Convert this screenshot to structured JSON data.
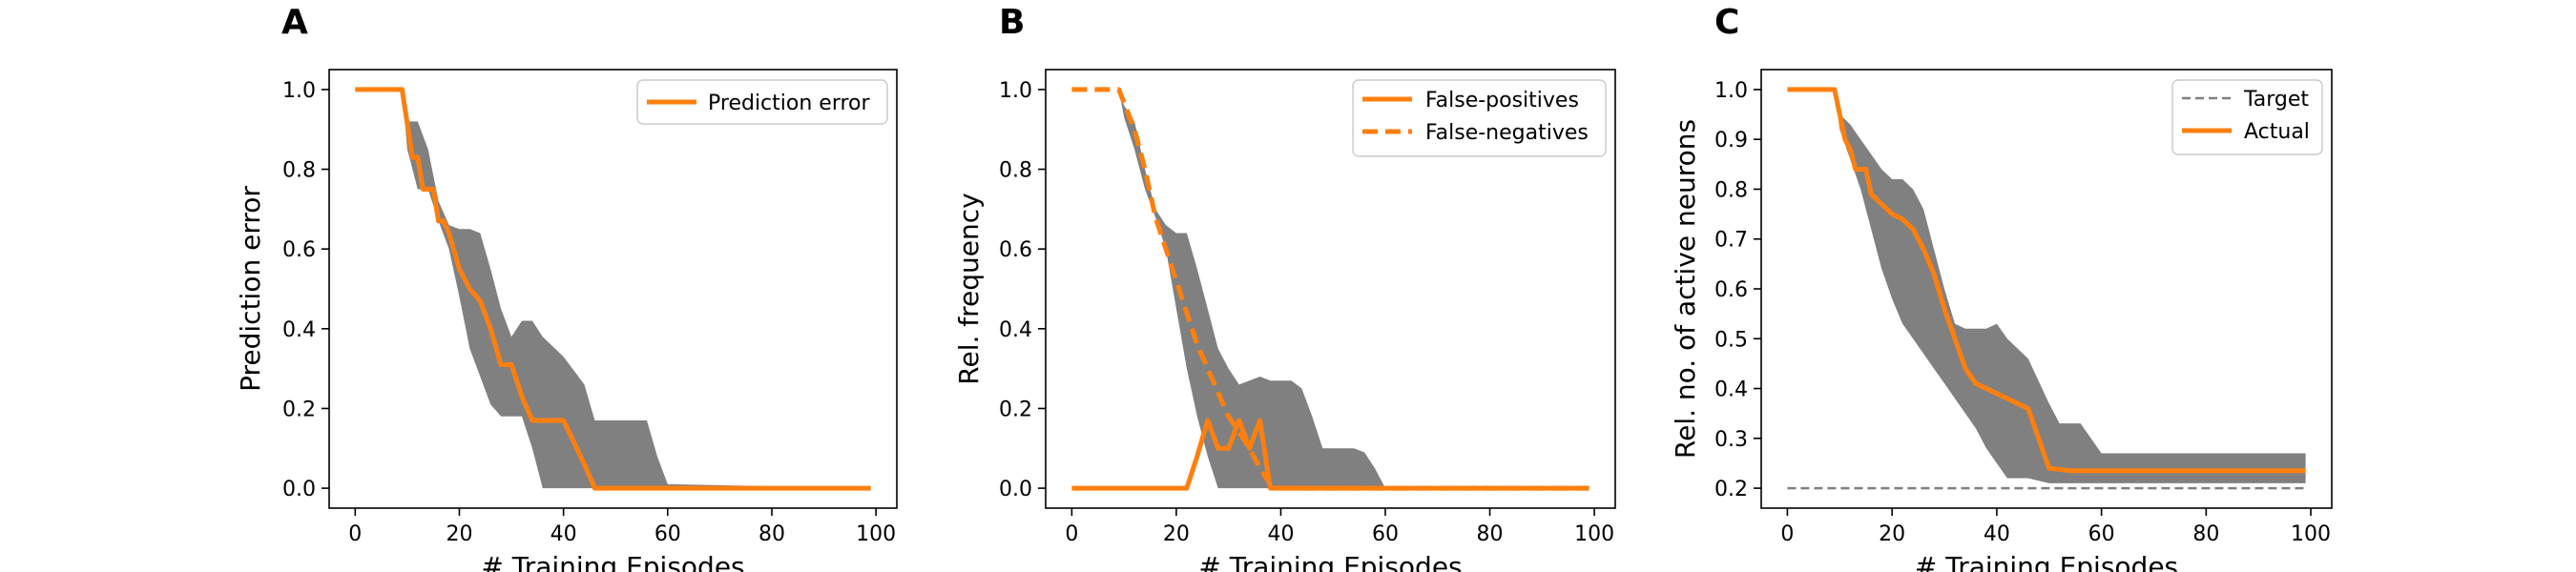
{
  "figure": {
    "panels": [
      {
        "letter": "A"
      },
      {
        "letter": "B"
      },
      {
        "letter": "C"
      }
    ]
  },
  "colors": {
    "accent": "#ff7f0e",
    "band": "#808080",
    "target": "#808080",
    "axes": "#000000"
  },
  "chart_data": [
    {
      "type": "line",
      "panel": "A",
      "xlabel": "# Training Episodes",
      "ylabel": "Prediction error",
      "xlim": [
        -5,
        104
      ],
      "ylim": [
        -0.05,
        1.05
      ],
      "xticks": [
        0,
        20,
        40,
        60,
        80,
        100
      ],
      "yticks": [
        0.0,
        0.2,
        0.4,
        0.6,
        0.8,
        1.0
      ],
      "ytick_labels": [
        "0.0",
        "0.2",
        "0.4",
        "0.6",
        "0.8",
        "1.0"
      ],
      "legend_position": "top-right",
      "band": {
        "upper": [
          [
            0,
            1.0
          ],
          [
            9,
            1.0
          ],
          [
            10,
            0.92
          ],
          [
            12,
            0.92
          ],
          [
            14,
            0.85
          ],
          [
            16,
            0.72
          ],
          [
            18,
            0.66
          ],
          [
            20,
            0.65
          ],
          [
            22,
            0.65
          ],
          [
            24,
            0.64
          ],
          [
            26,
            0.55
          ],
          [
            28,
            0.45
          ],
          [
            30,
            0.38
          ],
          [
            32,
            0.42
          ],
          [
            34,
            0.42
          ],
          [
            36,
            0.38
          ],
          [
            40,
            0.33
          ],
          [
            44,
            0.26
          ],
          [
            46,
            0.17
          ],
          [
            52,
            0.17
          ],
          [
            56,
            0.17
          ],
          [
            58,
            0.08
          ],
          [
            60,
            0.01
          ],
          [
            99,
            0.0
          ]
        ],
        "lower": [
          [
            0,
            1.0
          ],
          [
            9,
            1.0
          ],
          [
            10,
            0.85
          ],
          [
            12,
            0.75
          ],
          [
            14,
            0.75
          ],
          [
            16,
            0.67
          ],
          [
            18,
            0.6
          ],
          [
            20,
            0.48
          ],
          [
            22,
            0.35
          ],
          [
            24,
            0.28
          ],
          [
            26,
            0.21
          ],
          [
            28,
            0.18
          ],
          [
            30,
            0.18
          ],
          [
            32,
            0.18
          ],
          [
            34,
            0.1
          ],
          [
            36,
            0.0
          ],
          [
            99,
            0.0
          ]
        ]
      },
      "series": [
        {
          "name": "Prediction error",
          "style": "solid",
          "color": "#ff7f0e",
          "points": [
            [
              0,
              1.0
            ],
            [
              9,
              1.0
            ],
            [
              11,
              0.83
            ],
            [
              12,
              0.83
            ],
            [
              13,
              0.75
            ],
            [
              15,
              0.75
            ],
            [
              16,
              0.67
            ],
            [
              17,
              0.67
            ],
            [
              18,
              0.64
            ],
            [
              20,
              0.55
            ],
            [
              22,
              0.5
            ],
            [
              24,
              0.47
            ],
            [
              26,
              0.4
            ],
            [
              28,
              0.31
            ],
            [
              30,
              0.31
            ],
            [
              32,
              0.23
            ],
            [
              34,
              0.17
            ],
            [
              40,
              0.17
            ],
            [
              44,
              0.06
            ],
            [
              46,
              0.0
            ],
            [
              99,
              0.0
            ]
          ]
        }
      ]
    },
    {
      "type": "line",
      "panel": "B",
      "xlabel": "# Training Episodes",
      "ylabel": "Rel. frequency",
      "xlim": [
        -5,
        104
      ],
      "ylim": [
        -0.05,
        1.05
      ],
      "xticks": [
        0,
        20,
        40,
        60,
        80,
        100
      ],
      "yticks": [
        0.0,
        0.2,
        0.4,
        0.6,
        0.8,
        1.0
      ],
      "ytick_labels": [
        "0.0",
        "0.2",
        "0.4",
        "0.6",
        "0.8",
        "1.0"
      ],
      "legend_position": "top-right",
      "band": {
        "upper": [
          [
            0,
            1.0
          ],
          [
            9,
            1.0
          ],
          [
            10,
            0.96
          ],
          [
            12,
            0.92
          ],
          [
            14,
            0.8
          ],
          [
            16,
            0.7
          ],
          [
            18,
            0.66
          ],
          [
            20,
            0.64
          ],
          [
            22,
            0.64
          ],
          [
            24,
            0.55
          ],
          [
            26,
            0.45
          ],
          [
            28,
            0.35
          ],
          [
            30,
            0.3
          ],
          [
            32,
            0.26
          ],
          [
            34,
            0.27
          ],
          [
            36,
            0.28
          ],
          [
            38,
            0.27
          ],
          [
            40,
            0.27
          ],
          [
            42,
            0.27
          ],
          [
            44,
            0.25
          ],
          [
            46,
            0.18
          ],
          [
            48,
            0.1
          ],
          [
            54,
            0.1
          ],
          [
            56,
            0.09
          ],
          [
            58,
            0.05
          ],
          [
            60,
            0.0
          ],
          [
            99,
            0.0
          ]
        ],
        "lower": [
          [
            0,
            1.0
          ],
          [
            9,
            1.0
          ],
          [
            10,
            0.93
          ],
          [
            12,
            0.85
          ],
          [
            14,
            0.75
          ],
          [
            16,
            0.68
          ],
          [
            18,
            0.6
          ],
          [
            20,
            0.45
          ],
          [
            22,
            0.3
          ],
          [
            24,
            0.18
          ],
          [
            26,
            0.08
          ],
          [
            28,
            0.0
          ],
          [
            99,
            0.0
          ]
        ]
      },
      "series": [
        {
          "name": "False-positives",
          "style": "solid",
          "color": "#ff7f0e",
          "points": [
            [
              0,
              0.0
            ],
            [
              22,
              0.0
            ],
            [
              24,
              0.08
            ],
            [
              26,
              0.17
            ],
            [
              28,
              0.1
            ],
            [
              30,
              0.1
            ],
            [
              32,
              0.17
            ],
            [
              34,
              0.1
            ],
            [
              36,
              0.17
            ],
            [
              38,
              0.0
            ],
            [
              99,
              0.0
            ]
          ]
        },
        {
          "name": "False-negatives",
          "style": "dashed",
          "color": "#ff7f0e",
          "points": [
            [
              0,
              1.0
            ],
            [
              9,
              1.0
            ],
            [
              12,
              0.9
            ],
            [
              14,
              0.8
            ],
            [
              16,
              0.68
            ],
            [
              18,
              0.6
            ],
            [
              20,
              0.52
            ],
            [
              22,
              0.44
            ],
            [
              24,
              0.36
            ],
            [
              26,
              0.3
            ],
            [
              28,
              0.24
            ],
            [
              30,
              0.18
            ],
            [
              32,
              0.14
            ],
            [
              34,
              0.1
            ],
            [
              36,
              0.05
            ],
            [
              38,
              0.01
            ],
            [
              40,
              0.0
            ],
            [
              99,
              0.0
            ]
          ]
        }
      ]
    },
    {
      "type": "line",
      "panel": "C",
      "xlabel": "# Training Episodes",
      "ylabel": "Rel. no. of active neurons",
      "xlim": [
        -5,
        104
      ],
      "ylim": [
        0.16,
        1.04
      ],
      "xticks": [
        0,
        20,
        40,
        60,
        80,
        100
      ],
      "yticks": [
        0.2,
        0.3,
        0.4,
        0.5,
        0.6,
        0.7,
        0.8,
        0.9,
        1.0
      ],
      "ytick_labels": [
        "0.2",
        "0.3",
        "0.4",
        "0.5",
        "0.6",
        "0.7",
        "0.8",
        "0.9",
        "1.0"
      ],
      "legend_position": "top-right",
      "band": {
        "upper": [
          [
            0,
            1.0
          ],
          [
            9,
            1.0
          ],
          [
            10,
            0.95
          ],
          [
            12,
            0.93
          ],
          [
            14,
            0.9
          ],
          [
            16,
            0.87
          ],
          [
            18,
            0.84
          ],
          [
            20,
            0.82
          ],
          [
            22,
            0.82
          ],
          [
            24,
            0.8
          ],
          [
            26,
            0.76
          ],
          [
            28,
            0.68
          ],
          [
            30,
            0.6
          ],
          [
            32,
            0.53
          ],
          [
            34,
            0.52
          ],
          [
            36,
            0.52
          ],
          [
            38,
            0.52
          ],
          [
            40,
            0.53
          ],
          [
            42,
            0.5
          ],
          [
            46,
            0.46
          ],
          [
            50,
            0.37
          ],
          [
            52,
            0.33
          ],
          [
            56,
            0.33
          ],
          [
            60,
            0.27
          ],
          [
            99,
            0.27
          ]
        ],
        "lower": [
          [
            0,
            1.0
          ],
          [
            9,
            1.0
          ],
          [
            10,
            0.92
          ],
          [
            12,
            0.86
          ],
          [
            14,
            0.8
          ],
          [
            16,
            0.72
          ],
          [
            18,
            0.64
          ],
          [
            20,
            0.58
          ],
          [
            22,
            0.53
          ],
          [
            24,
            0.5
          ],
          [
            26,
            0.47
          ],
          [
            28,
            0.44
          ],
          [
            30,
            0.41
          ],
          [
            32,
            0.38
          ],
          [
            34,
            0.35
          ],
          [
            36,
            0.32
          ],
          [
            38,
            0.28
          ],
          [
            40,
            0.25
          ],
          [
            42,
            0.22
          ],
          [
            46,
            0.22
          ],
          [
            50,
            0.21
          ],
          [
            56,
            0.21
          ],
          [
            99,
            0.21
          ]
        ]
      },
      "series": [
        {
          "name": "Target",
          "style": "dashed-thin",
          "color": "#808080",
          "points": [
            [
              0,
              0.2
            ],
            [
              99,
              0.2
            ]
          ]
        },
        {
          "name": "Actual",
          "style": "solid",
          "color": "#ff7f0e",
          "points": [
            [
              0,
              1.0
            ],
            [
              9,
              1.0
            ],
            [
              11,
              0.9
            ],
            [
              12,
              0.88
            ],
            [
              13,
              0.84
            ],
            [
              15,
              0.84
            ],
            [
              16,
              0.79
            ],
            [
              18,
              0.77
            ],
            [
              20,
              0.75
            ],
            [
              22,
              0.74
            ],
            [
              24,
              0.72
            ],
            [
              26,
              0.68
            ],
            [
              28,
              0.63
            ],
            [
              30,
              0.56
            ],
            [
              32,
              0.5
            ],
            [
              34,
              0.44
            ],
            [
              36,
              0.41
            ],
            [
              38,
              0.4
            ],
            [
              40,
              0.39
            ],
            [
              42,
              0.38
            ],
            [
              46,
              0.36
            ],
            [
              48,
              0.3
            ],
            [
              50,
              0.24
            ],
            [
              54,
              0.235
            ],
            [
              60,
              0.235
            ],
            [
              99,
              0.235
            ]
          ]
        }
      ]
    }
  ]
}
